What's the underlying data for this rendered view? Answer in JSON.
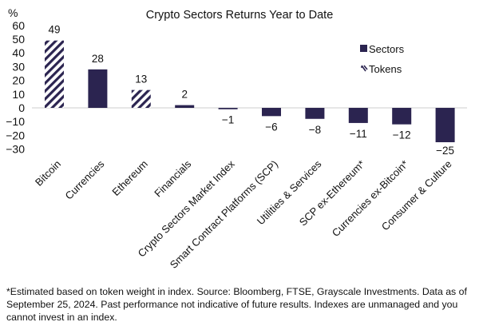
{
  "chart_data": {
    "type": "bar",
    "title": "Crypto Sectors Returns Year to Date",
    "ylabel": "%",
    "ylim": [
      -30,
      60
    ],
    "yticks": [
      60,
      50,
      40,
      30,
      20,
      10,
      0,
      -10,
      -20,
      -30
    ],
    "grid": false,
    "legend_position": "top-right",
    "categories": [
      "Bitcoin",
      "Currencies",
      "Ethereum",
      "Financials",
      "Crypto Sectors Market Index",
      "Smart Contract Platforms (SCP)",
      "Utilities & Services",
      "SCP ex-Ethereum*",
      "Currencies ex-Bitcoin*",
      "Consumer & Culture"
    ],
    "values": [
      49,
      28,
      13,
      2,
      -1,
      -6,
      -8,
      -11,
      -12,
      -25
    ],
    "bar_type": [
      "Tokens",
      "Sectors",
      "Tokens",
      "Sectors",
      "Sectors",
      "Sectors",
      "Sectors",
      "Sectors",
      "Sectors",
      "Sectors"
    ],
    "series": [
      {
        "name": "Sectors",
        "style": "solid",
        "color": "#2b2450"
      },
      {
        "name": "Tokens",
        "style": "hatched",
        "color": "#2b2450"
      }
    ]
  },
  "footnote": "*Estimated based on token weight in index. Source: Bloomberg, FTSE, Grayscale Investments. Data as of September 25, 2024. Past performance not indicative of future results. Indexes are unmanaged and you cannot invest in an index."
}
